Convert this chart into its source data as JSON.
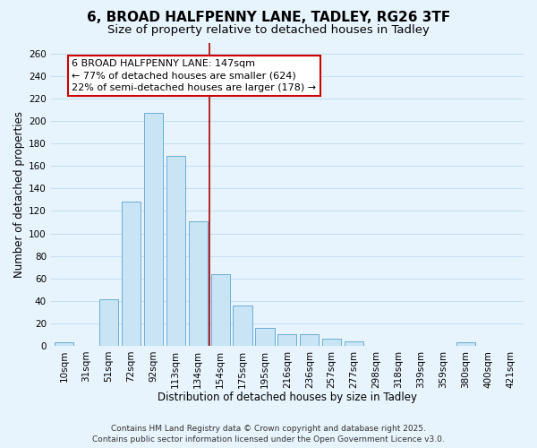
{
  "title": "6, BROAD HALFPENNY LANE, TADLEY, RG26 3TF",
  "subtitle": "Size of property relative to detached houses in Tadley",
  "xlabel": "Distribution of detached houses by size in Tadley",
  "ylabel": "Number of detached properties",
  "bar_labels": [
    "10sqm",
    "31sqm",
    "51sqm",
    "72sqm",
    "92sqm",
    "113sqm",
    "134sqm",
    "154sqm",
    "175sqm",
    "195sqm",
    "216sqm",
    "236sqm",
    "257sqm",
    "277sqm",
    "298sqm",
    "318sqm",
    "339sqm",
    "359sqm",
    "380sqm",
    "400sqm",
    "421sqm"
  ],
  "bar_values": [
    3,
    0,
    41,
    128,
    207,
    169,
    111,
    64,
    36,
    16,
    10,
    10,
    6,
    4,
    0,
    0,
    0,
    0,
    3,
    0,
    0
  ],
  "bar_color": "#c8e4f5",
  "bar_edge_color": "#6baed6",
  "ylim": [
    0,
    270
  ],
  "yticks": [
    0,
    20,
    40,
    60,
    80,
    100,
    120,
    140,
    160,
    180,
    200,
    220,
    240,
    260
  ],
  "vline_index": 6.5,
  "vline_color": "#aa0000",
  "annotation_title": "6 BROAD HALFPENNY LANE: 147sqm",
  "annotation_line1": "← 77% of detached houses are smaller (624)",
  "annotation_line2": "22% of semi-detached houses are larger (178) →",
  "annotation_box_color": "#ffffff",
  "annotation_box_edge": "#cc0000",
  "footer1": "Contains HM Land Registry data © Crown copyright and database right 2025.",
  "footer2": "Contains public sector information licensed under the Open Government Licence v3.0.",
  "background_color": "#e8f4fd",
  "grid_color": "#c8dff0",
  "title_fontsize": 11,
  "subtitle_fontsize": 9.5,
  "axis_label_fontsize": 8.5,
  "tick_fontsize": 7.5,
  "footer_fontsize": 6.5,
  "annotation_fontsize": 8
}
